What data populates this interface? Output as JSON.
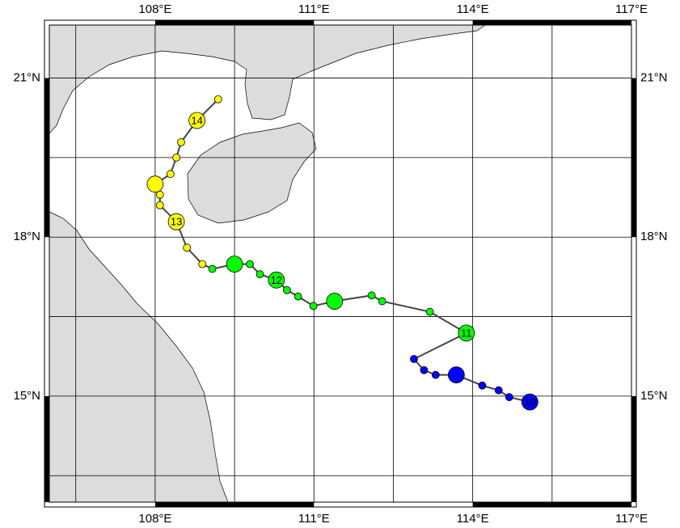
{
  "map": {
    "lonlim": [
      106,
      117
    ],
    "latlim": [
      13,
      22
    ],
    "xticks": [
      {
        "value": 108,
        "label": "108°E"
      },
      {
        "value": 111,
        "label": "111°E"
      },
      {
        "value": 114,
        "label": "114°E"
      },
      {
        "value": 117,
        "label": "117°E"
      }
    ],
    "yticks": [
      {
        "value": 15,
        "label": "15°N"
      },
      {
        "value": 18,
        "label": "18°N"
      },
      {
        "value": 21,
        "label": "21°N"
      }
    ],
    "grid": {
      "lon": [
        106.5,
        108,
        109.5,
        111,
        112.5,
        114,
        115.5
      ],
      "lat": [
        13.5,
        15,
        16.5,
        18,
        19.5,
        21
      ]
    },
    "track": [
      {
        "lon": 115.08,
        "lat": 14.89,
        "color": "#0000ff",
        "big": true,
        "label": "10"
      },
      {
        "lon": 114.69,
        "lat": 14.98,
        "color": "#0000ff",
        "big": false
      },
      {
        "lon": 114.49,
        "lat": 15.11,
        "color": "#0000ff",
        "big": false
      },
      {
        "lon": 114.18,
        "lat": 15.2,
        "color": "#0000ff",
        "big": false
      },
      {
        "lon": 113.69,
        "lat": 15.4,
        "color": "#0000ff",
        "big": true
      },
      {
        "lon": 113.3,
        "lat": 15.4,
        "color": "#0000ff",
        "big": false
      },
      {
        "lon": 113.08,
        "lat": 15.49,
        "color": "#0000ff",
        "big": false
      },
      {
        "lon": 112.89,
        "lat": 15.7,
        "color": "#0000ff",
        "big": false
      },
      {
        "lon": 113.88,
        "lat": 16.19,
        "color": "#00ff00",
        "big": true,
        "label": "11"
      },
      {
        "lon": 113.19,
        "lat": 16.59,
        "color": "#00ff00",
        "big": false
      },
      {
        "lon": 112.29,
        "lat": 16.79,
        "color": "#00ff00",
        "big": false
      },
      {
        "lon": 112.09,
        "lat": 16.9,
        "color": "#00ff00",
        "big": false
      },
      {
        "lon": 111.39,
        "lat": 16.79,
        "color": "#00ff00",
        "big": true
      },
      {
        "lon": 110.99,
        "lat": 16.7,
        "color": "#00ff00",
        "big": false
      },
      {
        "lon": 110.7,
        "lat": 16.88,
        "color": "#00ff00",
        "big": false
      },
      {
        "lon": 110.49,
        "lat": 17.0,
        "color": "#00ff00",
        "big": false
      },
      {
        "lon": 110.29,
        "lat": 17.19,
        "color": "#00ff00",
        "big": true,
        "label": "12"
      },
      {
        "lon": 109.98,
        "lat": 17.3,
        "color": "#00ff00",
        "big": false
      },
      {
        "lon": 109.79,
        "lat": 17.49,
        "color": "#00ff00",
        "big": false
      },
      {
        "lon": 109.5,
        "lat": 17.49,
        "color": "#00ff00",
        "big": true
      },
      {
        "lon": 109.08,
        "lat": 17.4,
        "color": "#00ff00",
        "big": false
      },
      {
        "lon": 108.89,
        "lat": 17.49,
        "color": "#ffff00",
        "big": false
      },
      {
        "lon": 108.6,
        "lat": 17.8,
        "color": "#ffff00",
        "big": false
      },
      {
        "lon": 108.4,
        "lat": 18.29,
        "color": "#ffff00",
        "big": true,
        "label": "13"
      },
      {
        "lon": 108.09,
        "lat": 18.6,
        "color": "#ffff00",
        "big": false
      },
      {
        "lon": 108.09,
        "lat": 18.8,
        "color": "#ffff00",
        "big": false
      },
      {
        "lon": 108.0,
        "lat": 19.0,
        "color": "#ffff00",
        "big": true
      },
      {
        "lon": 108.29,
        "lat": 19.19,
        "color": "#ffff00",
        "big": false
      },
      {
        "lon": 108.4,
        "lat": 19.5,
        "color": "#ffff00",
        "big": false
      },
      {
        "lon": 108.49,
        "lat": 19.79,
        "color": "#ffff00",
        "big": false
      },
      {
        "lon": 108.79,
        "lat": 20.2,
        "color": "#ffff00",
        "big": true,
        "label": "14"
      },
      {
        "lon": 109.19,
        "lat": 20.6,
        "color": "#ffff00",
        "big": false
      }
    ]
  }
}
